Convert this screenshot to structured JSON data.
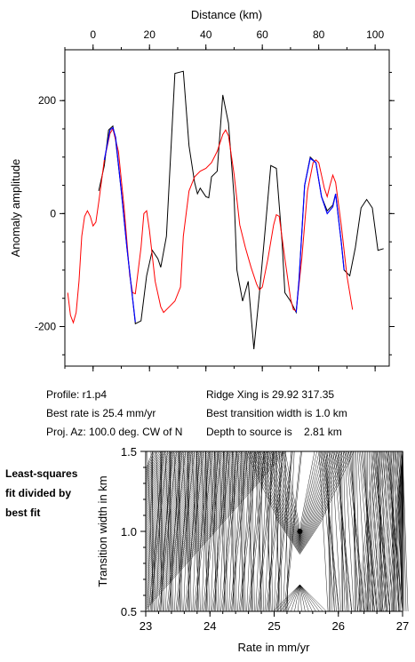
{
  "top_chart": {
    "x_label": "Distance (km)",
    "y_label": "Anomaly amplitude",
    "x_ticks": [
      0,
      20,
      40,
      60,
      80,
      100
    ],
    "y_ticks": [
      200,
      0,
      -200
    ]
  },
  "info": {
    "profile": "Profile: r1.p4",
    "best_rate": "Best rate is 25.4 mm/yr",
    "proj_az": "Proj. Az: 100.0 deg. CW of N",
    "ridge_xing": "Ridge Xing is 29.92 317.35",
    "transition": "Best transition width is 1.0 km",
    "depth": "Depth to source is    2.81 km"
  },
  "side_label": [
    "Least-squares",
    "fit divided by",
    "best fit"
  ],
  "bottom_chart": {
    "x_label": "Rate in mm/yr",
    "y_label": "Transition width in km",
    "x_ticks": [
      "23",
      "24",
      "25",
      "26",
      "27"
    ],
    "y_ticks": [
      "1.5",
      "1.0",
      "0.5"
    ]
  },
  "colors": {
    "observed": "#000000",
    "model": "#ff0000",
    "fit": "#0000ff"
  },
  "chart_data": [
    {
      "type": "line",
      "xlabel": "Distance (km)",
      "ylabel": "Anomaly amplitude",
      "xlim": [
        -10,
        105
      ],
      "ylim": [
        -270,
        290
      ],
      "grid": false,
      "series": [
        {
          "color": "#000000",
          "points": [
            [
              2,
              40
            ],
            [
              4,
              85
            ],
            [
              5.5,
              148
            ],
            [
              7,
              155
            ],
            [
              8,
              130
            ],
            [
              10,
              40
            ],
            [
              12,
              -60
            ],
            [
              14,
              -150
            ],
            [
              15,
              -195
            ],
            [
              17,
              -190
            ],
            [
              19,
              -110
            ],
            [
              21,
              -65
            ],
            [
              23,
              -80
            ],
            [
              24,
              -95
            ],
            [
              26,
              -40
            ],
            [
              29,
              248
            ],
            [
              32,
              252
            ],
            [
              34,
              120
            ],
            [
              36,
              55
            ],
            [
              37,
              35
            ],
            [
              38,
              45
            ],
            [
              40,
              30
            ],
            [
              41,
              28
            ],
            [
              42,
              65
            ],
            [
              44,
              75
            ],
            [
              46,
              210
            ],
            [
              48,
              160
            ],
            [
              50,
              30
            ],
            [
              51,
              -100
            ],
            [
              53,
              -155
            ],
            [
              55,
              -120
            ],
            [
              57,
              -240
            ],
            [
              59,
              -140
            ],
            [
              61,
              -30
            ],
            [
              63,
              85
            ],
            [
              65,
              80
            ],
            [
              67,
              -50
            ],
            [
              68,
              -140
            ],
            [
              70,
              -155
            ],
            [
              72,
              -175
            ],
            [
              73,
              -120
            ],
            [
              75,
              50
            ],
            [
              77,
              100
            ],
            [
              79,
              90
            ],
            [
              81,
              30
            ],
            [
              83,
              5
            ],
            [
              85,
              15
            ],
            [
              86,
              35
            ],
            [
              88,
              -50
            ],
            [
              89,
              -100
            ],
            [
              91,
              -110
            ],
            [
              93,
              -60
            ],
            [
              95,
              10
            ],
            [
              97,
              25
            ],
            [
              99,
              10
            ],
            [
              101,
              -65
            ],
            [
              103,
              -62
            ]
          ]
        },
        {
          "color": "#ff0000",
          "points": [
            [
              -9,
              -140
            ],
            [
              -8,
              -180
            ],
            [
              -7,
              -193
            ],
            [
              -6,
              -175
            ],
            [
              -5,
              -120
            ],
            [
              -4,
              -40
            ],
            [
              -3,
              -5
            ],
            [
              -2,
              5
            ],
            [
              -1,
              -5
            ],
            [
              0,
              -22
            ],
            [
              1,
              -15
            ],
            [
              2,
              20
            ],
            [
              4,
              95
            ],
            [
              6,
              142
            ],
            [
              7,
              150
            ],
            [
              9,
              110
            ],
            [
              11,
              10
            ],
            [
              13,
              -110
            ],
            [
              14,
              -140
            ],
            [
              15,
              -142
            ],
            [
              17,
              -60
            ],
            [
              18,
              0
            ],
            [
              19,
              5
            ],
            [
              20,
              -30
            ],
            [
              22,
              -120
            ],
            [
              24,
              -165
            ],
            [
              25,
              -175
            ],
            [
              27,
              -165
            ],
            [
              29,
              -155
            ],
            [
              31,
              -130
            ],
            [
              32,
              -40
            ],
            [
              34,
              40
            ],
            [
              36,
              65
            ],
            [
              38,
              75
            ],
            [
              40,
              80
            ],
            [
              42,
              90
            ],
            [
              44,
              110
            ],
            [
              46,
              140
            ],
            [
              47,
              148
            ],
            [
              48,
              138
            ],
            [
              50,
              70
            ],
            [
              52,
              -20
            ],
            [
              54,
              -60
            ],
            [
              56,
              -95
            ],
            [
              58,
              -125
            ],
            [
              59,
              -135
            ],
            [
              60,
              -130
            ],
            [
              62,
              -80
            ],
            [
              64,
              -20
            ],
            [
              65,
              -2
            ],
            [
              66,
              -5
            ],
            [
              68,
              -80
            ],
            [
              70,
              -150
            ],
            [
              71,
              -170
            ],
            [
              72,
              -172
            ],
            [
              74,
              -80
            ],
            [
              76,
              40
            ],
            [
              78,
              90
            ],
            [
              79,
              95
            ],
            [
              80,
              90
            ],
            [
              82,
              45
            ],
            [
              83,
              30
            ],
            [
              84,
              50
            ],
            [
              85,
              68
            ],
            [
              86,
              55
            ],
            [
              88,
              -20
            ],
            [
              90,
              -110
            ],
            [
              92,
              -170
            ]
          ]
        },
        {
          "color": "#0000ff",
          "points": [
            [
              4,
              95
            ],
            [
              6,
              148
            ],
            [
              7,
              152
            ],
            [
              8,
              135
            ],
            [
              10,
              40
            ],
            [
              12,
              -60
            ],
            [
              14,
              -150
            ],
            [
              15,
              -192
            ]
          ]
        },
        {
          "color": "#0000ff",
          "points": [
            [
              72,
              -175
            ],
            [
              73,
              -120
            ],
            [
              75,
              50
            ],
            [
              77,
              98
            ],
            [
              79,
              90
            ],
            [
              81,
              30
            ],
            [
              83,
              0
            ],
            [
              85,
              12
            ],
            [
              86,
              35
            ],
            [
              88,
              -50
            ],
            [
              89,
              -100
            ]
          ]
        }
      ]
    },
    {
      "type": "contour",
      "xlabel": "Rate in mm/yr",
      "ylabel": "Transition width in km",
      "xlim": [
        23,
        27
      ],
      "ylim": [
        0.5,
        1.5
      ],
      "best_fit": {
        "rate": 25.4,
        "width": 1.0
      }
    }
  ]
}
